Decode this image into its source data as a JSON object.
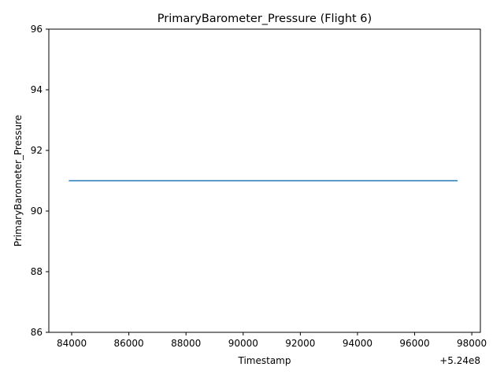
{
  "chart_data": {
    "type": "line",
    "title": "PrimaryBarometer_Pressure (Flight 6)",
    "xlabel": "Timestamp",
    "ylabel": "PrimaryBarometer_Pressure",
    "x_offset_label": "+5.24e8",
    "x_offset": 524000000,
    "xlim": [
      524083200,
      524098300
    ],
    "ylim": [
      86,
      96
    ],
    "x_ticks": [
      84000,
      86000,
      88000,
      90000,
      92000,
      94000,
      96000,
      98000
    ],
    "x_tick_labels": [
      "84000",
      "86000",
      "88000",
      "90000",
      "92000",
      "94000",
      "96000",
      "98000"
    ],
    "y_ticks": [
      86,
      88,
      90,
      92,
      94,
      96
    ],
    "y_tick_labels": [
      "86",
      "88",
      "90",
      "92",
      "94",
      "96"
    ],
    "grid": false,
    "legend": "none",
    "series": [
      {
        "x": [
          524083900,
          524097500
        ],
        "y": [
          91.0,
          91.0
        ],
        "color": "#1f77b4"
      }
    ]
  }
}
